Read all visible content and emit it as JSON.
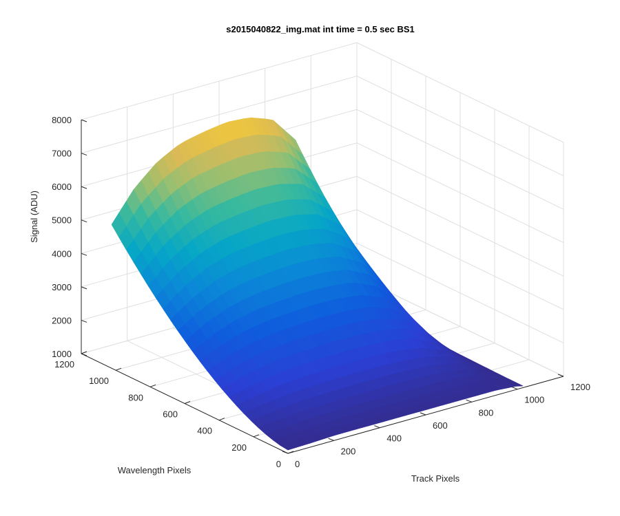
{
  "chart_data": {
    "type": "surface",
    "title": "s2015040822_img.mat int time = 0.5 sec   BS1",
    "zlabel": "Signal (ADU)",
    "wavelength_axis_label": "Wavelength Pixels",
    "track_axis_label": "Track Pixels",
    "zlim": [
      1000,
      8000
    ],
    "wavelength_lim": [
      0,
      1200
    ],
    "track_lim": [
      0,
      1200
    ],
    "z_ticks": [
      "1000",
      "2000",
      "3000",
      "4000",
      "5000",
      "6000",
      "7000",
      "8000"
    ],
    "wavelength_ticks": [
      "0",
      "200",
      "400",
      "600",
      "800",
      "1000",
      "1200"
    ],
    "track_ticks": [
      "0",
      "200",
      "400",
      "600",
      "800",
      "1000",
      "1200"
    ],
    "grid": true,
    "colormap": "parula",
    "surface_extent": {
      "wavelength_max": 1024,
      "track_max": 1024
    },
    "surface_profile": {
      "description_track": [
        0,
        100,
        200,
        300,
        400,
        500,
        600,
        700,
        800,
        900,
        1000,
        1024
      ],
      "signal_at_max_wavelength": [
        5300,
        6200,
        6800,
        7150,
        7300,
        7400,
        7350,
        7100,
        6300,
        4500,
        1600,
        1200
      ],
      "signal_at_zero_wavelength": [
        1100,
        1120,
        1150,
        1150,
        1150,
        1150,
        1150,
        1150,
        1150,
        1150,
        1100,
        1050
      ]
    }
  }
}
